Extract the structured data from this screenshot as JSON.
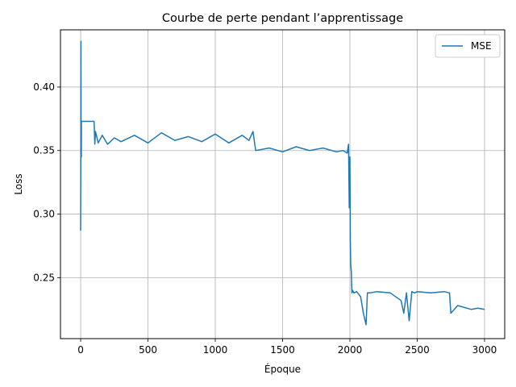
{
  "chart_data": {
    "type": "line",
    "title": "Courbe de perte pendant l’apprentissage",
    "xlabel": "Époque",
    "ylabel": "Loss",
    "xlim": [
      -150,
      3150
    ],
    "ylim": [
      0.202,
      0.445
    ],
    "xticks": [
      0,
      500,
      1000,
      1500,
      2000,
      2500,
      3000
    ],
    "xtick_labels": [
      "0",
      "500",
      "1000",
      "1500",
      "2000",
      "2500",
      "3000"
    ],
    "yticks": [
      0.25,
      0.3,
      0.35,
      0.4
    ],
    "ytick_labels": [
      "0.25",
      "0.30",
      "0.35",
      "0.40"
    ],
    "grid": true,
    "legend": "top-right",
    "series": [
      {
        "name": "MSE",
        "color": "#1f77b4",
        "x": [
          0,
          1,
          2,
          3,
          4,
          5,
          6,
          8,
          10,
          15,
          20,
          30,
          50,
          80,
          100,
          105,
          110,
          130,
          160,
          200,
          250,
          300,
          400,
          500,
          600,
          700,
          800,
          900,
          1000,
          1100,
          1200,
          1250,
          1280,
          1300,
          1400,
          1500,
          1600,
          1700,
          1800,
          1900,
          1950,
          1980,
          1990,
          1995,
          2000,
          2003,
          2006,
          2010,
          2015,
          2020,
          2030,
          2050,
          2080,
          2100,
          2120,
          2130,
          2140,
          2150,
          2200,
          2300,
          2380,
          2400,
          2420,
          2440,
          2460,
          2480,
          2500,
          2600,
          2700,
          2740,
          2750,
          2800,
          2900,
          2950,
          3000
        ],
        "y": [
          0.287,
          0.33,
          0.436,
          0.38,
          0.35,
          0.345,
          0.373,
          0.373,
          0.373,
          0.373,
          0.373,
          0.373,
          0.373,
          0.373,
          0.373,
          0.355,
          0.365,
          0.356,
          0.362,
          0.355,
          0.36,
          0.357,
          0.362,
          0.356,
          0.364,
          0.358,
          0.361,
          0.357,
          0.363,
          0.356,
          0.362,
          0.358,
          0.365,
          0.35,
          0.352,
          0.349,
          0.353,
          0.35,
          0.352,
          0.349,
          0.35,
          0.348,
          0.355,
          0.305,
          0.345,
          0.28,
          0.26,
          0.255,
          0.238,
          0.24,
          0.238,
          0.239,
          0.235,
          0.222,
          0.213,
          0.238,
          0.238,
          0.238,
          0.239,
          0.238,
          0.232,
          0.222,
          0.238,
          0.216,
          0.239,
          0.238,
          0.239,
          0.238,
          0.239,
          0.238,
          0.222,
          0.228,
          0.225,
          0.226,
          0.225
        ]
      }
    ]
  }
}
